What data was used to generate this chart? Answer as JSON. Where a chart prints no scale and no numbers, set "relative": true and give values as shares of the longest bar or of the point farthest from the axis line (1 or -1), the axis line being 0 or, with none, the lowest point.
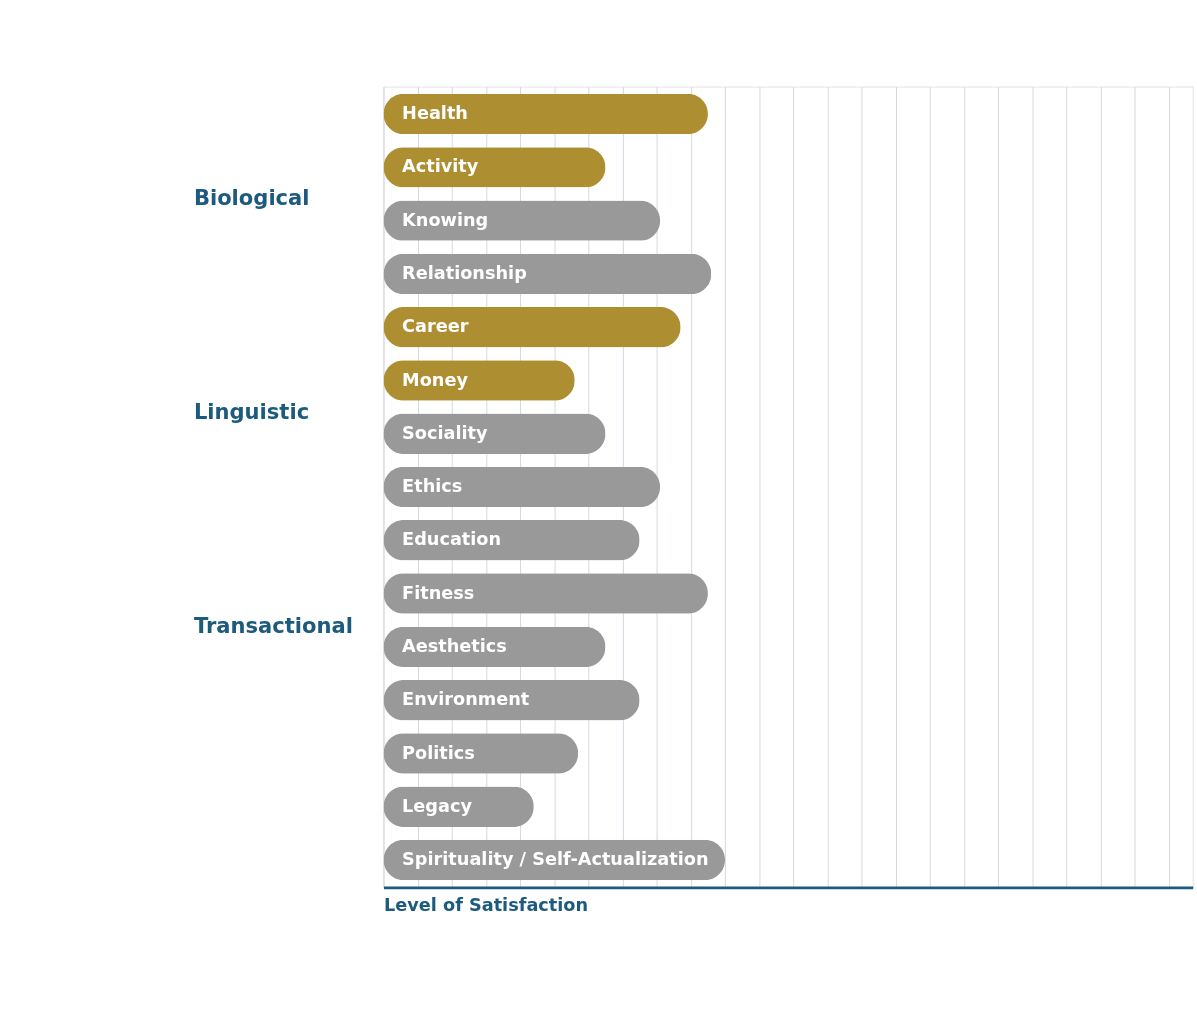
{
  "chart_data": {
    "type": "bar",
    "orientation": "horizontal",
    "relative": true,
    "xlabel": "Level of Satisfaction",
    "grid": "x",
    "categories": [
      "Health",
      "Activity",
      "Knowing",
      "Relationship",
      "Career",
      "Money",
      "Sociality",
      "Ethics",
      "Education",
      "Fitness",
      "Aesthetics",
      "Environment",
      "Politics",
      "Legacy",
      "Spirituality / Self-Actualization"
    ],
    "values": [
      0.95,
      0.65,
      0.81,
      0.96,
      0.87,
      0.56,
      0.65,
      0.81,
      0.75,
      0.95,
      0.65,
      0.75,
      0.57,
      0.44,
      1
    ],
    "colors": [
      "#ad8f32",
      "#ad8f32",
      "#999999",
      "#999999",
      "#ad8f32",
      "#ad8f32",
      "#999999",
      "#999999",
      "#999999",
      "#999999",
      "#999999",
      "#999999",
      "#999999",
      "#999999",
      "#999999"
    ],
    "annotations": [
      "Biological",
      "Linguistic",
      "Transactional"
    ]
  }
}
